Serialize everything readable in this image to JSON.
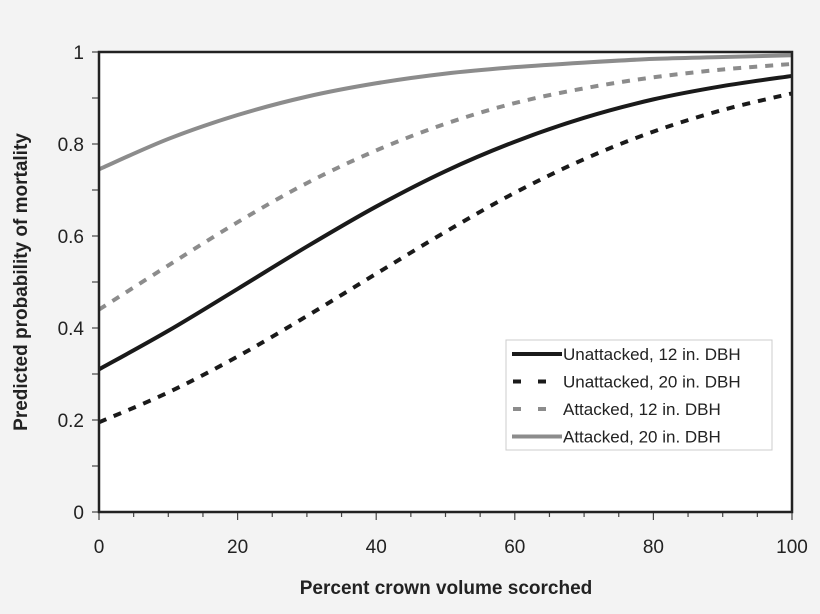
{
  "chart_data": {
    "type": "line",
    "title": "",
    "xlabel": "Percent crown volume scorched",
    "ylabel": "Predicted probability of mortality",
    "xlim": [
      0,
      100
    ],
    "ylim": [
      0,
      1
    ],
    "xticks": [
      "0",
      "20",
      "40",
      "60",
      "80",
      "100"
    ],
    "yticks": [
      "0",
      "0.2",
      "0.4",
      "0.6",
      "0.8",
      "1"
    ],
    "grid": false,
    "legend_position": "lower-right",
    "x": [
      0,
      10,
      20,
      30,
      40,
      50,
      60,
      70,
      80,
      90,
      100
    ],
    "series": [
      {
        "name": "Unattacked, 12 in. DBH",
        "color": "#1a1a1a",
        "style": "solid",
        "values": [
          0.31,
          0.394,
          0.485,
          0.577,
          0.664,
          0.741,
          0.805,
          0.857,
          0.897,
          0.926,
          0.948
        ]
      },
      {
        "name": "Unattacked, 20 in. DBH",
        "color": "#1a1a1a",
        "style": "dashed",
        "values": [
          0.195,
          0.26,
          0.338,
          0.426,
          0.518,
          0.609,
          0.694,
          0.767,
          0.827,
          0.874,
          0.91
        ]
      },
      {
        "name": "Attacked, 12 in. DBH",
        "color": "#8c8c8c",
        "style": "dashed",
        "values": [
          0.44,
          0.536,
          0.63,
          0.715,
          0.786,
          0.844,
          0.889,
          0.921,
          0.945,
          0.962,
          0.974
        ]
      },
      {
        "name": "Attacked, 20 in. DBH",
        "color": "#8c8c8c",
        "style": "solid",
        "values": [
          0.745,
          0.811,
          0.863,
          0.903,
          0.932,
          0.953,
          0.967,
          0.977,
          0.985,
          0.989,
          0.993
        ]
      }
    ]
  }
}
